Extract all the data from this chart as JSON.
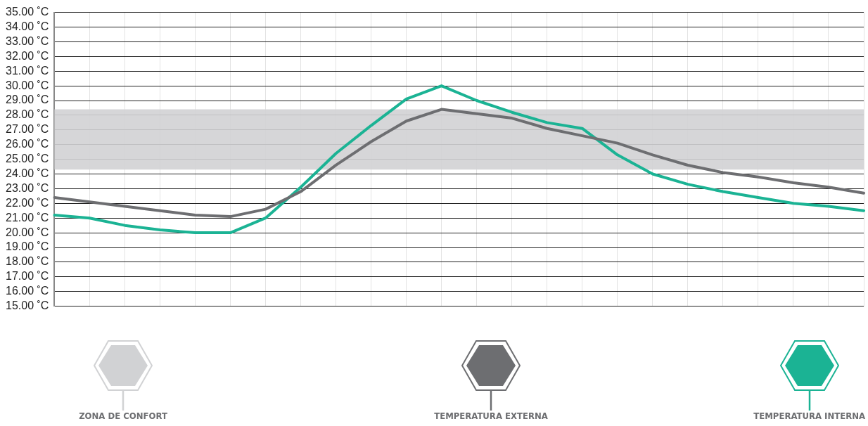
{
  "chart_data": {
    "type": "line",
    "categories": [
      null,
      null,
      null,
      null,
      null,
      null,
      null,
      null,
      null,
      null,
      null,
      null,
      null,
      null,
      null,
      null,
      null,
      null,
      null,
      null,
      null,
      null,
      null,
      null
    ],
    "series": [
      {
        "name": "TEMPERATURA EXTERNA",
        "color": "#6d6e71",
        "values": [
          22.4,
          22.1,
          21.8,
          21.5,
          21.2,
          21.1,
          21.6,
          22.8,
          24.6,
          26.2,
          27.6,
          28.4,
          28.1,
          27.8,
          27.1,
          26.6,
          26.1,
          25.3,
          24.6,
          24.1,
          23.8,
          23.4,
          23.1,
          22.7
        ]
      },
      {
        "name": "TEMPERATURA INTERNA",
        "color": "#1bb394",
        "values": [
          21.2,
          21.0,
          20.5,
          20.2,
          20.0,
          20.0,
          21.0,
          23.1,
          25.4,
          27.3,
          29.1,
          30.0,
          29.0,
          28.2,
          27.5,
          27.1,
          25.3,
          24.0,
          23.3,
          22.8,
          22.4,
          22.0,
          21.8,
          21.5
        ]
      }
    ],
    "bands": [
      {
        "axis": "y",
        "from": 24.3,
        "to": 28.4,
        "label": "ZONA DE CONFORT",
        "color": "#d1d2d4"
      }
    ],
    "ylim": [
      15,
      35
    ],
    "yticks": [
      {
        "value": 15,
        "label": "15.00 ˚C"
      },
      {
        "value": 16,
        "label": "16.00 ˚C"
      },
      {
        "value": 17,
        "label": "17.00 ˚C"
      },
      {
        "value": 18,
        "label": "18.00 ˚C"
      },
      {
        "value": 19,
        "label": "19.00 ˚C"
      },
      {
        "value": 20,
        "label": "20.00 ˚C"
      },
      {
        "value": 21,
        "label": "21.00 ˚C"
      },
      {
        "value": 22,
        "label": "22.00 ˚C"
      },
      {
        "value": 23,
        "label": "23.00 ˚C"
      },
      {
        "value": 24,
        "label": "24.00 ˚C"
      },
      {
        "value": 25,
        "label": "25.00 ˚C"
      },
      {
        "value": 26,
        "label": "26.00 ˚C"
      },
      {
        "value": 27,
        "label": "27.00 ˚C"
      },
      {
        "value": 28,
        "label": "28.00 ˚C"
      },
      {
        "value": 29,
        "label": "29.00 ˚C"
      },
      {
        "value": 30,
        "label": "30.00 ˚C"
      },
      {
        "value": 31,
        "label": "31.00 ˚C"
      },
      {
        "value": 32,
        "label": "32.00 ˚C"
      },
      {
        "value": 33,
        "label": "33.00 ˚C"
      },
      {
        "value": 34,
        "label": "34.00 ˚C"
      },
      {
        "value": 35,
        "label": "35.00 ˚C"
      }
    ],
    "grid": true,
    "legend": "bottom",
    "marker": "none",
    "line_style": "solid"
  }
}
